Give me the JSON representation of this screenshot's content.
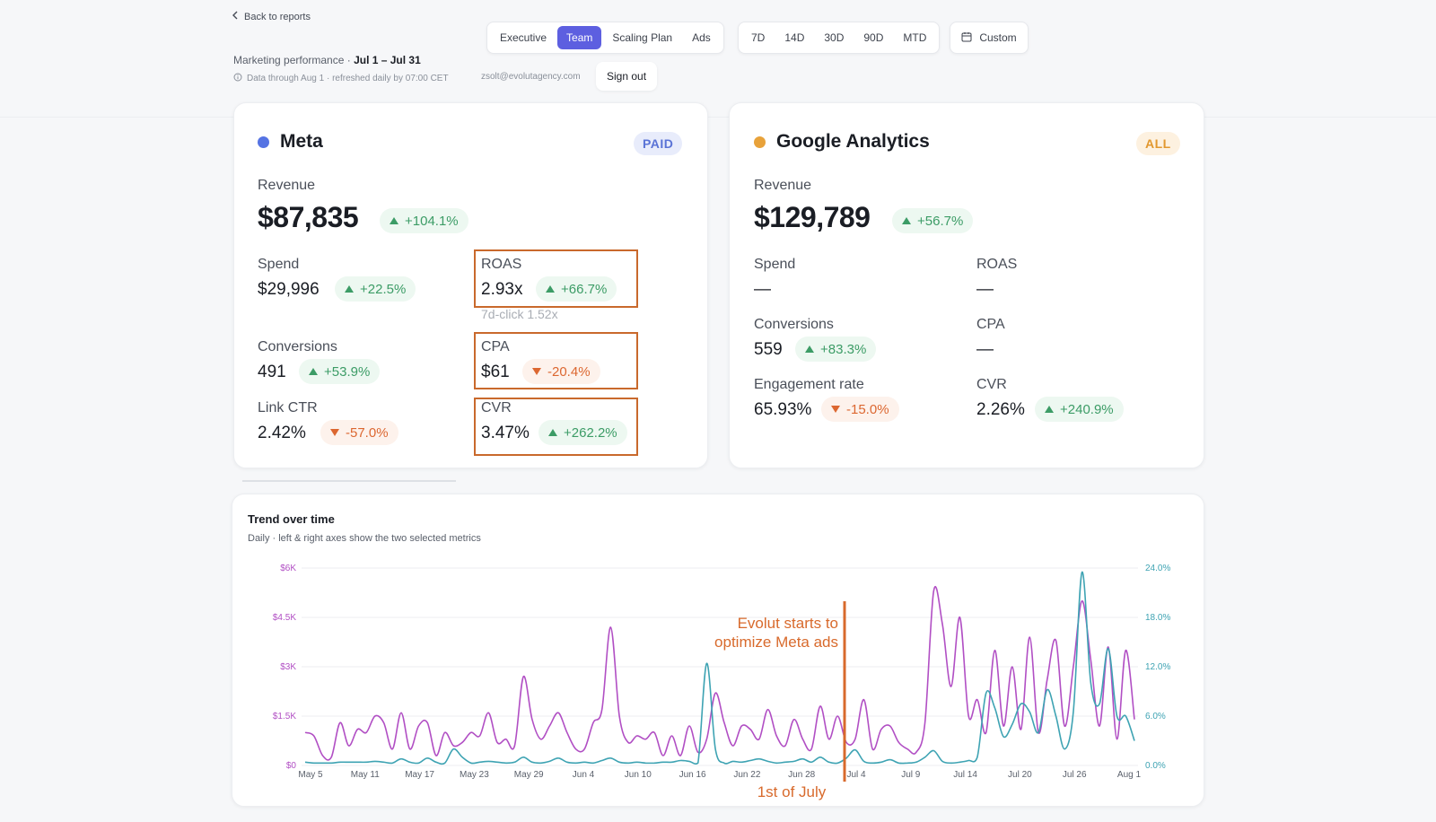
{
  "header": {
    "back_label": "Back to reports",
    "subtitle_prefix": "Marketing performance · ",
    "subtitle_range": "Jul 1 – Jul 31",
    "refresh_note": "Data through Aug 1 · refreshed daily by 07:00 CET",
    "email": "zsolt@evolutagency.com",
    "signout_label": "Sign out"
  },
  "view_tabs": [
    {
      "label": "Executive",
      "active": false
    },
    {
      "label": "Team",
      "active": true
    },
    {
      "label": "Scaling Plan",
      "active": false
    },
    {
      "label": "Ads",
      "active": false
    }
  ],
  "range_tabs": [
    "7D",
    "14D",
    "30D",
    "90D",
    "MTD"
  ],
  "custom_label": "Custom",
  "meta": {
    "title": "Meta",
    "badge": "PAID",
    "dot_color": "#5573e3",
    "revenue_label": "Revenue",
    "revenue": "$87,835",
    "revenue_delta": "+104.1%",
    "spend_label": "Spend",
    "spend": "$29,996",
    "spend_delta": "+22.5%",
    "roas_label": "ROAS",
    "roas": "2.93x",
    "roas_delta": "+66.7%",
    "roas_note": "7d-click 1.52x",
    "conv_label": "Conversions",
    "conv": "491",
    "conv_delta": "+53.9%",
    "cpa_label": "CPA",
    "cpa": "$61",
    "cpa_delta": "-20.4%",
    "ctr_label": "Link CTR",
    "ctr": "2.42%",
    "ctr_delta": "-57.0%",
    "cvr_label": "CVR",
    "cvr": "3.47%",
    "cvr_delta": "+262.2%"
  },
  "ga": {
    "title": "Google Analytics",
    "badge": "ALL",
    "dot_color": "#e8a23a",
    "revenue_label": "Revenue",
    "revenue": "$129,789",
    "revenue_delta": "+56.7%",
    "spend_label": "Spend",
    "spend": "—",
    "roas_label": "ROAS",
    "roas": "—",
    "conv_label": "Conversions",
    "conv": "559",
    "conv_delta": "+83.3%",
    "cpa_label": "CPA",
    "cpa": "—",
    "eng_label": "Engagement rate",
    "eng": "65.93%",
    "eng_delta": "-15.0%",
    "cvr_label": "CVR",
    "cvr": "2.26%",
    "cvr_delta": "+240.9%"
  },
  "trend": {
    "title": "Trend over time",
    "subtitle": "Daily · left & right axes show the two selected metrics",
    "annotation_line1": "Evolut starts to",
    "annotation_line2": "optimize Meta ads",
    "annotation_bottom": "1st of July"
  },
  "chart_data": {
    "type": "line",
    "x_ticks": [
      "May 5",
      "May 11",
      "May 17",
      "May 23",
      "May 29",
      "Jun 4",
      "Jun 10",
      "Jun 16",
      "Jun 22",
      "Jun 28",
      "Jul 4",
      "Jul 9",
      "Jul 14",
      "Jul 20",
      "Jul 26",
      "Aug 1"
    ],
    "x_start": "May 5",
    "x_end": "Aug 1",
    "left_axis": {
      "ticks": [
        "$0",
        "$1.5K",
        "$3K",
        "$4.5K",
        "$6K"
      ],
      "range": [
        0,
        6000
      ]
    },
    "right_axis": {
      "ticks": [
        "0.0%",
        "6.0%",
        "12.0%",
        "18.0%",
        "24.0%"
      ],
      "range": [
        0,
        24
      ]
    },
    "series": [
      {
        "axis": "left",
        "color": "#b14fc4",
        "values": [
          1000,
          900,
          300,
          250,
          1300,
          600,
          1100,
          1000,
          1500,
          1300,
          500,
          1600,
          500,
          1200,
          1300,
          300,
          1000,
          600,
          700,
          1000,
          900,
          1600,
          700,
          800,
          600,
          2700,
          1400,
          800,
          1200,
          1600,
          1000,
          500,
          500,
          1300,
          1700,
          4200,
          1500,
          700,
          900,
          800,
          1000,
          300,
          900,
          300,
          1200,
          400,
          800,
          2200,
          1300,
          600,
          1200,
          1100,
          800,
          1700,
          900,
          600,
          1400,
          800,
          500,
          1800,
          800,
          1500,
          700,
          800,
          2000,
          500,
          1100,
          1200,
          700,
          500,
          400,
          1300,
          5300,
          4300,
          2400,
          4500,
          1500,
          2000,
          1000,
          3500,
          1200,
          3000,
          1100,
          3900,
          1000,
          2600,
          3800,
          1200,
          3000,
          5000,
          3200,
          1200,
          3600,
          800,
          3500,
          1400
        ]
      },
      {
        "axis": "right",
        "color": "#3ea3b3",
        "values": [
          0.4,
          0.3,
          0.3,
          0.3,
          0.4,
          0.4,
          0.4,
          0.4,
          0.5,
          0.4,
          0.3,
          0.8,
          0.4,
          0.3,
          0.9,
          0.4,
          0.3,
          2.0,
          1.0,
          0.3,
          0.4,
          0.5,
          0.4,
          0.3,
          0.4,
          1.0,
          0.4,
          0.3,
          0.5,
          0.9,
          0.4,
          0.3,
          0.4,
          0.3,
          0.6,
          0.9,
          0.4,
          0.3,
          0.4,
          0.3,
          0.3,
          0.4,
          0.4,
          0.6,
          0.5,
          0.3,
          12.4,
          2.0,
          0.3,
          0.5,
          0.4,
          0.6,
          0.8,
          0.5,
          0.3,
          0.4,
          0.5,
          0.8,
          0.4,
          1.0,
          0.4,
          0.3,
          0.9,
          1.9,
          0.5,
          0.3,
          0.4,
          0.7,
          0.3,
          0.3,
          0.4,
          1.0,
          1.8,
          0.5,
          0.3,
          0.4,
          0.6,
          1.0,
          8.8,
          7.0,
          3.5,
          5.0,
          7.5,
          6.5,
          4.0,
          9.2,
          6.0,
          2.0,
          6.5,
          23.5,
          10.0,
          7.5,
          14.2,
          6.0,
          6.0,
          3.0
        ]
      }
    ]
  }
}
